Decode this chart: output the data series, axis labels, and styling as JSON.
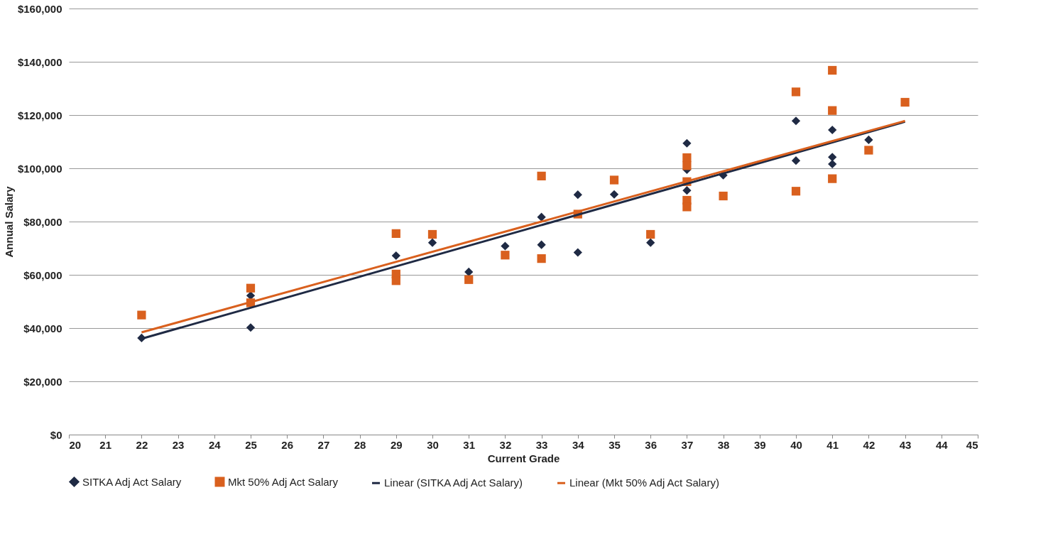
{
  "chart_data": {
    "type": "scatter",
    "xlabel": "Current Grade",
    "ylabel": "Annual Salary",
    "xlim": [
      20,
      45
    ],
    "xticks": [
      20,
      21,
      22,
      23,
      24,
      25,
      26,
      27,
      28,
      29,
      30,
      31,
      32,
      33,
      34,
      35,
      36,
      37,
      38,
      39,
      40,
      41,
      42,
      43,
      44,
      45
    ],
    "ylim": [
      0,
      160000
    ],
    "yticks": [
      {
        "value": 0,
        "label": "$0"
      },
      {
        "value": 20000,
        "label": "$20,000"
      },
      {
        "value": 40000,
        "label": "$40,000"
      },
      {
        "value": 60000,
        "label": "$60,000"
      },
      {
        "value": 80000,
        "label": "$80,000"
      },
      {
        "value": 100000,
        "label": "$100,000"
      },
      {
        "value": 120000,
        "label": "$120,000"
      },
      {
        "value": 140000,
        "label": "$140,000"
      },
      {
        "value": 160000,
        "label": "$160,000"
      }
    ],
    "grid": "y",
    "legend": "bottom",
    "series": [
      {
        "name": "SITKA Adj Act Salary",
        "marker": "diamond",
        "color": "#1f2a44",
        "x": [
          22,
          25,
          25,
          29,
          30,
          31,
          32,
          33,
          33,
          34,
          34,
          35,
          36,
          37,
          37,
          37,
          38,
          40,
          40,
          41,
          41,
          41,
          42
        ],
        "values": [
          36300,
          52200,
          40200,
          67200,
          72100,
          61100,
          70800,
          81700,
          71300,
          90100,
          68400,
          90200,
          72100,
          109400,
          99500,
          91700,
          97400,
          117800,
          102900,
          114400,
          104200,
          101600,
          110700
        ]
      },
      {
        "name": "Mkt 50% Adj Act Salary",
        "marker": "square",
        "color": "#d9601e",
        "x": [
          22,
          25,
          25,
          29,
          29,
          29,
          30,
          31,
          32,
          33,
          33,
          34,
          35,
          36,
          37,
          37,
          37,
          37,
          37,
          38,
          40,
          40,
          41,
          41,
          41,
          42,
          43
        ],
        "values": [
          44900,
          55000,
          49500,
          75500,
          60300,
          57800,
          75200,
          58200,
          67400,
          97100,
          66100,
          82800,
          95600,
          75200,
          104000,
          101000,
          95000,
          88000,
          85500,
          89600,
          128700,
          91400,
          136800,
          121700,
          96100,
          106800,
          124800
        ]
      },
      {
        "name": "Linear (SITKA Adj Act Salary)",
        "type": "line",
        "color": "#1f2a44",
        "x": [
          22,
          43
        ],
        "values": [
          36000,
          117500
        ]
      },
      {
        "name": "Linear (Mkt 50% Adj Act Salary)",
        "type": "line",
        "color": "#d9601e",
        "x": [
          22,
          43
        ],
        "values": [
          38400,
          117800
        ]
      }
    ]
  }
}
